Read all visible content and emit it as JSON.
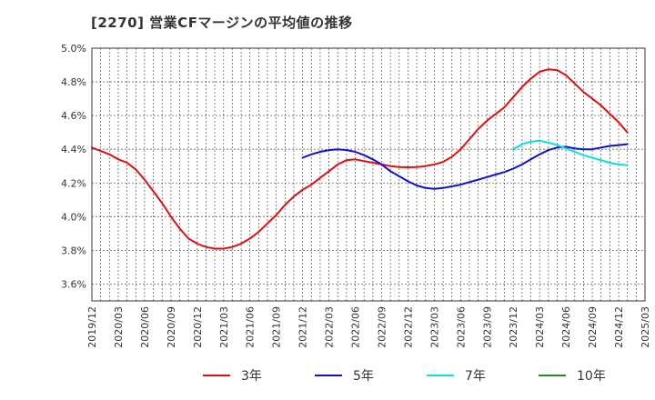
{
  "chart_data": {
    "type": "line",
    "title": "[2270]  営業CFマージンの平均値の推移",
    "xlabel": "",
    "ylabel": "",
    "ylim": [
      3.5,
      5.0
    ],
    "yticks": [
      "3.6%",
      "3.8%",
      "4.0%",
      "4.2%",
      "4.4%",
      "4.6%",
      "4.8%",
      "5.0%"
    ],
    "ytick_values": [
      3.6,
      3.8,
      4.0,
      4.2,
      4.4,
      4.6,
      4.8,
      5.0
    ],
    "xticks": [
      "2019/12",
      "2020/03",
      "2020/06",
      "2020/09",
      "2020/12",
      "2021/03",
      "2021/06",
      "2021/09",
      "2021/12",
      "2022/03",
      "2022/06",
      "2022/09",
      "2022/12",
      "2023/03",
      "2023/06",
      "2023/09",
      "2023/12",
      "2024/03",
      "2024/06",
      "2024/09",
      "2024/12",
      "2025/03"
    ],
    "grid": true,
    "legend_position": "bottom",
    "series": [
      {
        "name": "3年",
        "color": "#dd1111",
        "points": [
          [
            "2019/12",
            4.41
          ],
          [
            "2020/01",
            4.39
          ],
          [
            "2020/02",
            4.37
          ],
          [
            "2020/03",
            4.34
          ],
          [
            "2020/04",
            4.32
          ],
          [
            "2020/05",
            4.28
          ],
          [
            "2020/06",
            4.22
          ],
          [
            "2020/07",
            4.15
          ],
          [
            "2020/08",
            4.08
          ],
          [
            "2020/09",
            4.0
          ],
          [
            "2020/10",
            3.93
          ],
          [
            "2020/11",
            3.87
          ],
          [
            "2020/12",
            3.84
          ],
          [
            "2021/01",
            3.82
          ],
          [
            "2021/02",
            3.81
          ],
          [
            "2021/03",
            3.81
          ],
          [
            "2021/04",
            3.82
          ],
          [
            "2021/05",
            3.84
          ],
          [
            "2021/06",
            3.87
          ],
          [
            "2021/07",
            3.91
          ],
          [
            "2021/08",
            3.96
          ],
          [
            "2021/09",
            4.01
          ],
          [
            "2021/10",
            4.07
          ],
          [
            "2021/11",
            4.12
          ],
          [
            "2021/12",
            4.16
          ],
          [
            "2022/01",
            4.19
          ],
          [
            "2022/02",
            4.23
          ],
          [
            "2022/03",
            4.27
          ],
          [
            "2022/04",
            4.31
          ],
          [
            "2022/05",
            4.335
          ],
          [
            "2022/06",
            4.34
          ],
          [
            "2022/07",
            4.33
          ],
          [
            "2022/08",
            4.32
          ],
          [
            "2022/09",
            4.31
          ],
          [
            "2022/10",
            4.3
          ],
          [
            "2022/11",
            4.295
          ],
          [
            "2022/12",
            4.293
          ],
          [
            "2023/01",
            4.295
          ],
          [
            "2023/02",
            4.3
          ],
          [
            "2023/03",
            4.31
          ],
          [
            "2023/04",
            4.325
          ],
          [
            "2023/05",
            4.355
          ],
          [
            "2023/06",
            4.4
          ],
          [
            "2023/07",
            4.46
          ],
          [
            "2023/08",
            4.52
          ],
          [
            "2023/09",
            4.57
          ],
          [
            "2023/10",
            4.61
          ],
          [
            "2023/11",
            4.65
          ],
          [
            "2023/12",
            4.71
          ],
          [
            "2024/01",
            4.77
          ],
          [
            "2024/02",
            4.82
          ],
          [
            "2024/03",
            4.86
          ],
          [
            "2024/04",
            4.875
          ],
          [
            "2024/05",
            4.87
          ],
          [
            "2024/06",
            4.84
          ],
          [
            "2024/07",
            4.79
          ],
          [
            "2024/08",
            4.74
          ],
          [
            "2024/09",
            4.7
          ],
          [
            "2024/10",
            4.66
          ],
          [
            "2024/11",
            4.61
          ],
          [
            "2024/12",
            4.56
          ],
          [
            "2025/01",
            4.5
          ]
        ]
      },
      {
        "name": "5年",
        "color": "#1111cc",
        "points": [
          [
            "2021/12",
            4.35
          ],
          [
            "2022/01",
            4.37
          ],
          [
            "2022/02",
            4.385
          ],
          [
            "2022/03",
            4.395
          ],
          [
            "2022/04",
            4.4
          ],
          [
            "2022/05",
            4.395
          ],
          [
            "2022/06",
            4.385
          ],
          [
            "2022/07",
            4.365
          ],
          [
            "2022/08",
            4.34
          ],
          [
            "2022/09",
            4.31
          ],
          [
            "2022/10",
            4.27
          ],
          [
            "2022/11",
            4.24
          ],
          [
            "2022/12",
            4.21
          ],
          [
            "2023/01",
            4.185
          ],
          [
            "2023/02",
            4.17
          ],
          [
            "2023/03",
            4.165
          ],
          [
            "2023/04",
            4.17
          ],
          [
            "2023/05",
            4.18
          ],
          [
            "2023/06",
            4.19
          ],
          [
            "2023/07",
            4.205
          ],
          [
            "2023/08",
            4.22
          ],
          [
            "2023/09",
            4.235
          ],
          [
            "2023/10",
            4.25
          ],
          [
            "2023/11",
            4.265
          ],
          [
            "2023/12",
            4.285
          ],
          [
            "2024/01",
            4.31
          ],
          [
            "2024/02",
            4.34
          ],
          [
            "2024/03",
            4.37
          ],
          [
            "2024/04",
            4.395
          ],
          [
            "2024/05",
            4.41
          ],
          [
            "2024/06",
            4.415
          ],
          [
            "2024/07",
            4.405
          ],
          [
            "2024/08",
            4.4
          ],
          [
            "2024/09",
            4.4
          ],
          [
            "2024/10",
            4.41
          ],
          [
            "2024/11",
            4.42
          ],
          [
            "2024/12",
            4.425
          ],
          [
            "2025/01",
            4.43
          ]
        ]
      },
      {
        "name": "7年",
        "color": "#11dddd",
        "points": [
          [
            "2023/12",
            4.4
          ],
          [
            "2024/01",
            4.43
          ],
          [
            "2024/02",
            4.445
          ],
          [
            "2024/03",
            4.45
          ],
          [
            "2024/04",
            4.44
          ],
          [
            "2024/05",
            4.425
          ],
          [
            "2024/06",
            4.405
          ],
          [
            "2024/07",
            4.385
          ],
          [
            "2024/08",
            4.365
          ],
          [
            "2024/09",
            4.35
          ],
          [
            "2024/10",
            4.335
          ],
          [
            "2024/11",
            4.32
          ],
          [
            "2024/12",
            4.31
          ],
          [
            "2025/01",
            4.305
          ]
        ]
      },
      {
        "name": "10年",
        "color": "#228822",
        "points": []
      }
    ]
  }
}
